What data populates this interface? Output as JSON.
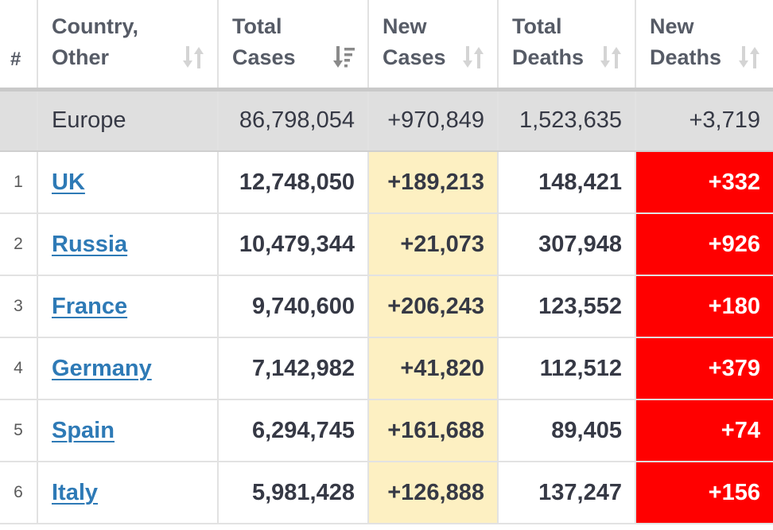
{
  "headers": {
    "num": "#",
    "country_line1": "Country,",
    "country_line2": "Other",
    "total_cases_line1": "Total",
    "total_cases_line2": "Cases",
    "new_cases_line1": "New",
    "new_cases_line2": "Cases",
    "total_deaths_line1": "Total",
    "total_deaths_line2": "Deaths",
    "new_deaths_line1": "New",
    "new_deaths_line2": "Deaths"
  },
  "summary": {
    "region": "Europe",
    "total_cases": "86,798,054",
    "new_cases": "+970,849",
    "total_deaths": "1,523,635",
    "new_deaths": "+3,719"
  },
  "rows": [
    {
      "rank": "1",
      "country": "UK",
      "total_cases": "12,748,050",
      "new_cases": "+189,213",
      "total_deaths": "148,421",
      "new_deaths": "+332"
    },
    {
      "rank": "2",
      "country": "Russia",
      "total_cases": "10,479,344",
      "new_cases": "+21,073",
      "total_deaths": "307,948",
      "new_deaths": "+926"
    },
    {
      "rank": "3",
      "country": "France",
      "total_cases": "9,740,600",
      "new_cases": "+206,243",
      "total_deaths": "123,552",
      "new_deaths": "+180"
    },
    {
      "rank": "4",
      "country": "Germany",
      "total_cases": "7,142,982",
      "new_cases": "+41,820",
      "total_deaths": "112,512",
      "new_deaths": "+379"
    },
    {
      "rank": "5",
      "country": "Spain",
      "total_cases": "6,294,745",
      "new_cases": "+161,688",
      "total_deaths": "89,405",
      "new_deaths": "+74"
    },
    {
      "rank": "6",
      "country": "Italy",
      "total_cases": "5,981,428",
      "new_cases": "+126,888",
      "total_deaths": "137,247",
      "new_deaths": "+156"
    }
  ],
  "colors": {
    "link": "#2e7ab6",
    "new_cases_bg": "#fdf0c2",
    "new_deaths_bg": "#ff0000",
    "summary_bg": "#dfdfdf"
  },
  "icons": {
    "sort_inactive": "sort-both-icon",
    "sort_active": "sort-descending-icon"
  }
}
